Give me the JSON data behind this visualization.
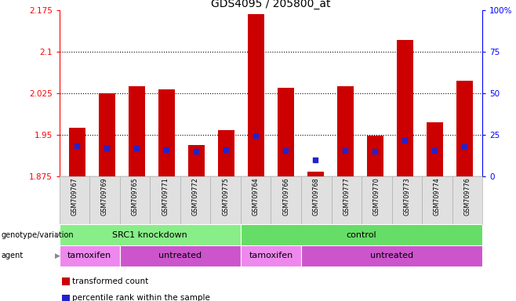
{
  "title": "GDS4095 / 205800_at",
  "samples": [
    "GSM709767",
    "GSM709769",
    "GSM709765",
    "GSM709771",
    "GSM709772",
    "GSM709775",
    "GSM709764",
    "GSM709766",
    "GSM709768",
    "GSM709777",
    "GSM709770",
    "GSM709773",
    "GSM709774",
    "GSM709776"
  ],
  "bar_values": [
    1.962,
    2.025,
    2.038,
    2.032,
    1.932,
    1.958,
    2.168,
    2.035,
    1.883,
    2.038,
    1.948,
    2.122,
    1.972,
    2.048
  ],
  "blue_values": [
    1.93,
    1.925,
    1.925,
    1.923,
    1.92,
    1.923,
    1.948,
    1.922,
    1.905,
    1.922,
    1.92,
    1.94,
    1.922,
    1.928
  ],
  "bar_bottom": 1.875,
  "ylim_min": 1.875,
  "ylim_max": 2.175,
  "yticks": [
    1.875,
    1.95,
    2.025,
    2.1,
    2.175
  ],
  "ytick_labels": [
    "1.875",
    "1.95",
    "2.025",
    "2.1",
    "2.175"
  ],
  "right_ytick_percents": [
    0,
    25,
    50,
    75,
    100
  ],
  "right_ytick_labels": [
    "0",
    "25",
    "50",
    "75",
    "100%"
  ],
  "bar_color": "#cc0000",
  "blue_color": "#2222cc",
  "genotype_groups": [
    {
      "label": "SRC1 knockdown",
      "start": 0,
      "end": 6,
      "color": "#88ee88"
    },
    {
      "label": "control",
      "start": 6,
      "end": 14,
      "color": "#66dd66"
    }
  ],
  "agent_groups": [
    {
      "label": "tamoxifen",
      "start": 0,
      "end": 2,
      "color": "#ee88ee"
    },
    {
      "label": "untreated",
      "start": 2,
      "end": 6,
      "color": "#cc55cc"
    },
    {
      "label": "tamoxifen",
      "start": 6,
      "end": 8,
      "color": "#ee88ee"
    },
    {
      "label": "untreated",
      "start": 8,
      "end": 14,
      "color": "#cc55cc"
    }
  ],
  "legend_items": [
    {
      "label": "transformed count",
      "color": "#cc0000"
    },
    {
      "label": "percentile rank within the sample",
      "color": "#2222cc"
    }
  ],
  "title_fontsize": 10,
  "bar_width": 0.55,
  "grid_ticks": [
    1.95,
    2.025,
    2.1
  ]
}
